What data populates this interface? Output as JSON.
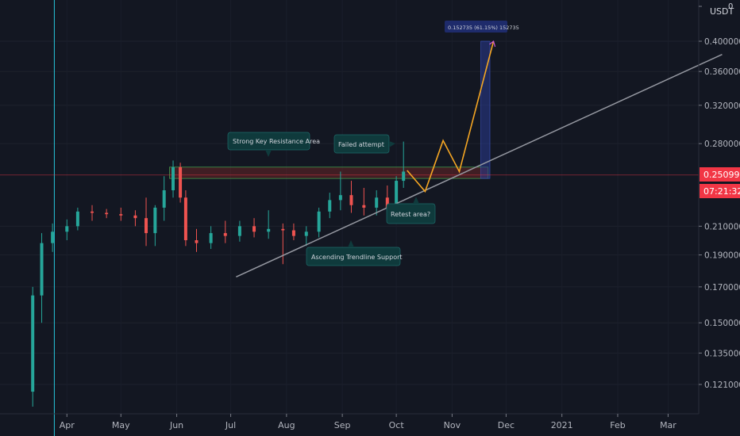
{
  "header": {
    "currency": "USDT",
    "corner_value": "0"
  },
  "price_axis": {
    "ticks": [
      "0.400000",
      "0.360000",
      "0.320000",
      "0.280000",
      "0.210000",
      "0.190000",
      "0.170000",
      "0.150000",
      "0.135000",
      "0.121000"
    ],
    "top_tick": "0",
    "current_price": "0.250993",
    "countdown": "07:21:32"
  },
  "time_axis": {
    "labels": [
      "Apr",
      "May",
      "Jun",
      "Jul",
      "Aug",
      "Sep",
      "Oct",
      "Nov",
      "Dec",
      "2021",
      "Feb",
      "Mar"
    ]
  },
  "annotations": {
    "resistance": "Strong Key Resistance Area",
    "failed": "Failed attempt",
    "retest": "Retest area?",
    "trendline": "Ascending Trendline Support",
    "target": "0.152735 (61.15%) 152735"
  },
  "colors": {
    "background": "#131722",
    "up_candle": "#26a69a",
    "down_candle": "#ef5350",
    "projection": "#f5a623",
    "trendline": "#9598a1",
    "target_box": "#2a3b8f",
    "price_tag": "#f23645",
    "annotation_bg": "#0f3a3c"
  },
  "chart_data": {
    "type": "candlestick",
    "y_scale": "log",
    "ylim": [
      0.112,
      0.44
    ],
    "candles": [
      {
        "t": "2020-03-13",
        "o": 0.118,
        "h": 0.17,
        "l": 0.112,
        "c": 0.165
      },
      {
        "t": "2020-03-18",
        "o": 0.165,
        "h": 0.205,
        "l": 0.15,
        "c": 0.198
      },
      {
        "t": "2020-03-24",
        "o": 0.198,
        "h": 0.212,
        "l": 0.192,
        "c": 0.206
      },
      {
        "t": "2020-04-01",
        "o": 0.206,
        "h": 0.215,
        "l": 0.2,
        "c": 0.21
      },
      {
        "t": "2020-04-07",
        "o": 0.21,
        "h": 0.224,
        "l": 0.207,
        "c": 0.221
      },
      {
        "t": "2020-04-15",
        "o": 0.221,
        "h": 0.226,
        "l": 0.214,
        "c": 0.22
      },
      {
        "t": "2020-04-23",
        "o": 0.22,
        "h": 0.223,
        "l": 0.216,
        "c": 0.219
      },
      {
        "t": "2020-05-01",
        "o": 0.219,
        "h": 0.224,
        "l": 0.214,
        "c": 0.218
      },
      {
        "t": "2020-05-09",
        "o": 0.218,
        "h": 0.222,
        "l": 0.21,
        "c": 0.216
      },
      {
        "t": "2020-05-15",
        "o": 0.216,
        "h": 0.232,
        "l": 0.196,
        "c": 0.205
      },
      {
        "t": "2020-05-20",
        "o": 0.205,
        "h": 0.226,
        "l": 0.196,
        "c": 0.224
      },
      {
        "t": "2020-05-25",
        "o": 0.224,
        "h": 0.25,
        "l": 0.214,
        "c": 0.238
      },
      {
        "t": "2020-05-30",
        "o": 0.238,
        "h": 0.264,
        "l": 0.232,
        "c": 0.258
      },
      {
        "t": "2020-06-03",
        "o": 0.258,
        "h": 0.262,
        "l": 0.228,
        "c": 0.232
      },
      {
        "t": "2020-06-06",
        "o": 0.232,
        "h": 0.238,
        "l": 0.196,
        "c": 0.2
      },
      {
        "t": "2020-06-12",
        "o": 0.2,
        "h": 0.208,
        "l": 0.192,
        "c": 0.198
      },
      {
        "t": "2020-06-20",
        "o": 0.198,
        "h": 0.21,
        "l": 0.194,
        "c": 0.205
      },
      {
        "t": "2020-06-28",
        "o": 0.205,
        "h": 0.214,
        "l": 0.198,
        "c": 0.203
      },
      {
        "t": "2020-07-06",
        "o": 0.203,
        "h": 0.214,
        "l": 0.199,
        "c": 0.21
      },
      {
        "t": "2020-07-14",
        "o": 0.21,
        "h": 0.216,
        "l": 0.202,
        "c": 0.206
      },
      {
        "t": "2020-07-22",
        "o": 0.206,
        "h": 0.222,
        "l": 0.201,
        "c": 0.208
      },
      {
        "t": "2020-07-30",
        "o": 0.208,
        "h": 0.212,
        "l": 0.184,
        "c": 0.207
      },
      {
        "t": "2020-08-05",
        "o": 0.207,
        "h": 0.212,
        "l": 0.2,
        "c": 0.203
      },
      {
        "t": "2020-08-12",
        "o": 0.203,
        "h": 0.21,
        "l": 0.196,
        "c": 0.206
      },
      {
        "t": "2020-08-19",
        "o": 0.206,
        "h": 0.224,
        "l": 0.202,
        "c": 0.221
      },
      {
        "t": "2020-08-25",
        "o": 0.221,
        "h": 0.236,
        "l": 0.216,
        "c": 0.23
      },
      {
        "t": "2020-08-31",
        "o": 0.23,
        "h": 0.254,
        "l": 0.222,
        "c": 0.234
      },
      {
        "t": "2020-09-06",
        "o": 0.234,
        "h": 0.246,
        "l": 0.22,
        "c": 0.226
      },
      {
        "t": "2020-09-13",
        "o": 0.226,
        "h": 0.24,
        "l": 0.218,
        "c": 0.224
      },
      {
        "t": "2020-09-20",
        "o": 0.224,
        "h": 0.238,
        "l": 0.218,
        "c": 0.232
      },
      {
        "t": "2020-09-26",
        "o": 0.232,
        "h": 0.242,
        "l": 0.22,
        "c": 0.224
      },
      {
        "t": "2020-10-01",
        "o": 0.224,
        "h": 0.25,
        "l": 0.222,
        "c": 0.246
      },
      {
        "t": "2020-10-05",
        "o": 0.246,
        "h": 0.282,
        "l": 0.24,
        "c": 0.254
      }
    ],
    "resistance_zone": {
      "from": "2020-05-28",
      "to": "2020-11-21",
      "low": 0.248,
      "high": 0.258
    },
    "target_range": {
      "from": "2020-11-17",
      "to": "2020-11-22",
      "low": 0.248,
      "high": 0.4
    },
    "trendline": {
      "from": {
        "t": "2020-07-04",
        "v": 0.176
      },
      "to": {
        "t": "2021-03-31",
        "v": 0.382
      }
    },
    "projection": [
      {
        "t": "2020-10-07",
        "v": 0.255
      },
      {
        "t": "2020-10-17",
        "v": 0.237
      },
      {
        "t": "2020-10-27",
        "v": 0.283
      },
      {
        "t": "2020-11-05",
        "v": 0.254
      },
      {
        "t": "2020-11-24",
        "v": 0.4
      }
    ],
    "current_price": 0.250993,
    "vertical_line_date": "2020-03-25"
  }
}
